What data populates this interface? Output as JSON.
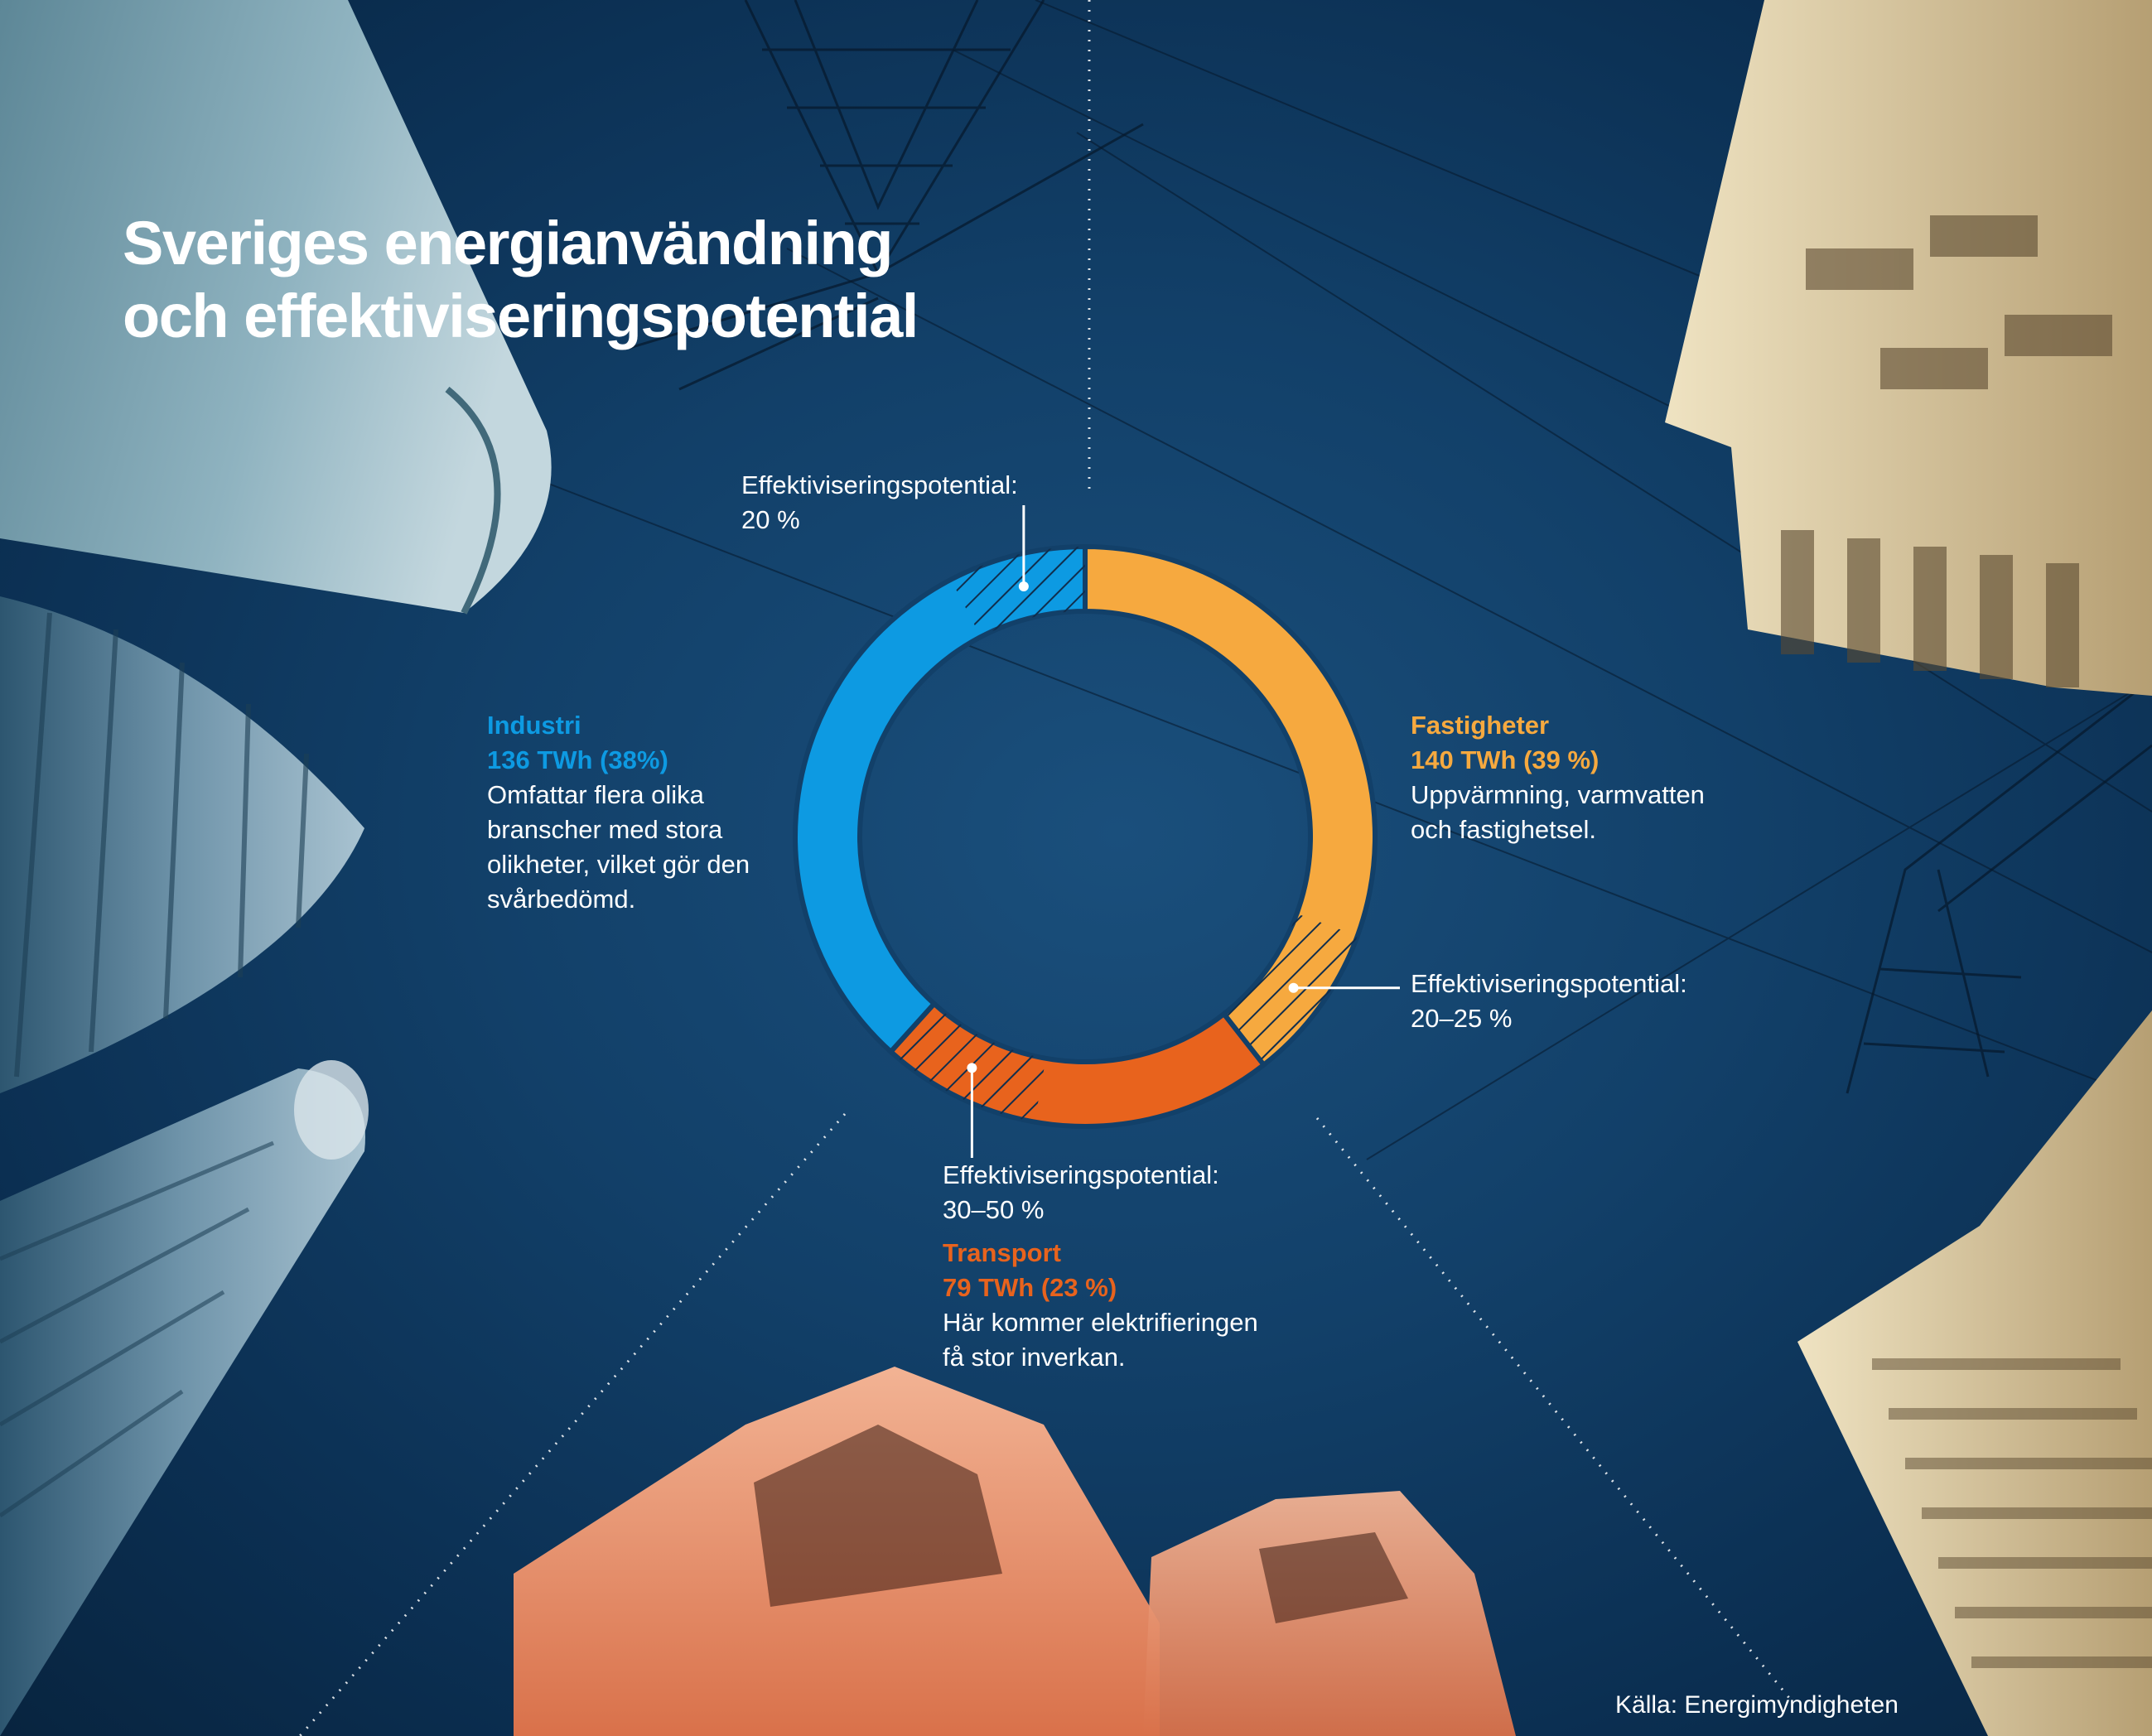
{
  "title_lines": [
    "Sveriges energianvändning",
    "och effektiviseringspotential"
  ],
  "colors": {
    "industri": "#0d9ae2",
    "fastigheter": "#f6a93f",
    "transport": "#e8631d",
    "text": "#ffffff",
    "background": "#124069"
  },
  "chart_data": {
    "type": "pie",
    "style": "donut",
    "title": "Sveriges energianvändning och effektiviseringspotential",
    "unit": "TWh",
    "slices": [
      {
        "name": "Fastigheter",
        "value": 140,
        "percent": 39,
        "value_label": "140 TWh (39 %)",
        "description": "Uppvärmning, varmvatten och fastighetsel.",
        "potential": "20–25 %",
        "potential_share": 0.225,
        "color": "#f6a93f"
      },
      {
        "name": "Transport",
        "value": 79,
        "percent": 23,
        "value_label": "79 TWh (23 %)",
        "description": "Här kommer elektrifieringen få stor inverkan.",
        "potential": "30–50 %",
        "potential_share": 0.4,
        "color": "#e8631d"
      },
      {
        "name": "Industri",
        "value": 136,
        "percent": 38,
        "value_label": "136 TWh (38%)",
        "description": "Omfattar flera olika branscher med stora olikheter, vilket gör den svårbedömd.",
        "potential": "20 %",
        "potential_share": 0.2,
        "color": "#0d9ae2"
      }
    ],
    "legend": "none",
    "potential_label": "Effektiviseringspotential:"
  },
  "labels": {
    "industri": {
      "name": "Industri",
      "value": "136 TWh (38%)",
      "desc_lines": [
        "Omfattar flera olika",
        "branscher med stora",
        "olikheter, vilket gör den",
        "svårbedömd."
      ]
    },
    "fastigheter": {
      "name": "Fastigheter",
      "value": "140 TWh (39 %)",
      "desc_lines": [
        "Uppvärmning, varmvatten",
        "och fastighetsel."
      ]
    },
    "transport": {
      "name": "Transport",
      "value": "79 TWh (23 %)",
      "desc_lines": [
        "Här kommer elektrifieringen",
        "få stor inverkan."
      ]
    },
    "potential_industri": {
      "label": "Effektiviseringspotential:",
      "value": "20 %"
    },
    "potential_fastigheter": {
      "label": "Effektiviseringspotential:",
      "value": "20–25 %"
    },
    "potential_transport": {
      "label": "Effektiviseringspotential:",
      "value": "30–50 %"
    }
  },
  "source": "Källa: Energimyndigheten"
}
